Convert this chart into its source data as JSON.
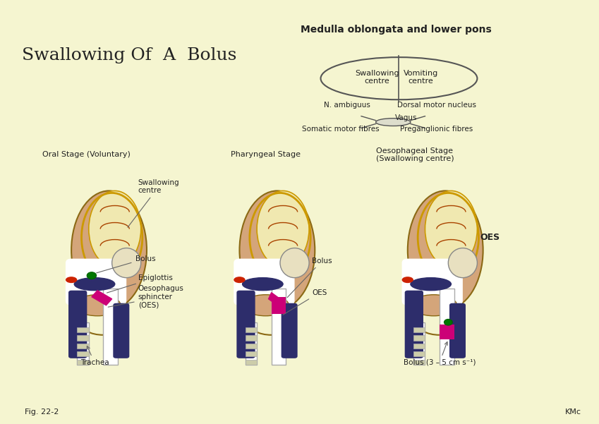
{
  "bg_color": "#f5f5d0",
  "title": "Swallowing Of  A  Bolus",
  "fig_label": "Fig. 22-2",
  "kmc_label": "KMc",
  "medulla_title": "Medulla oblongata and lower pons",
  "swallowing_centre_text": "Swallowing\ncentre",
  "vomiting_centre_text": "Vomiting\ncentre",
  "n_ambiguus_text": "N. ambiguus",
  "dorsal_motor_text": "Dorsal motor nucleus",
  "vagus_text": "Vagus",
  "somatic_text": "Somatic motor fibres",
  "preganglionic_text": "Preganglionic fibres",
  "stage1_title": "Oral Stage (Voluntary)",
  "stage2_title": "Pharyngeal Stage",
  "stage3_title": "Oesophageal Stage\n(Swallowing centre)",
  "label_color": "#222222",
  "head_skin_color": "#d4a57a",
  "brain_color": "#f0e8b0",
  "dark_tissue_color": "#2d2d6b",
  "magenta_color": "#cc0077",
  "red_color": "#cc2200",
  "green_color": "#007700"
}
